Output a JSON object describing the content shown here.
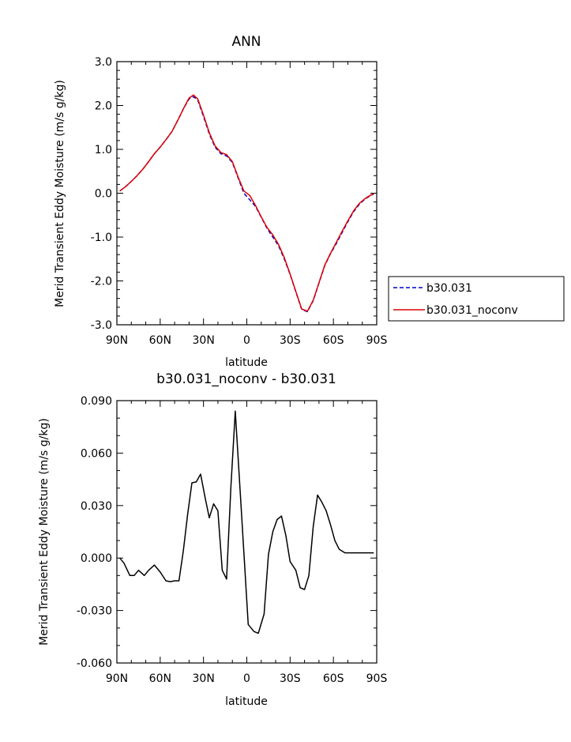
{
  "chart_data": [
    {
      "type": "line",
      "title": "ANN",
      "xlabel": "latitude",
      "ylabel": "Merid Transient Eddy Moisture (m/s g/kg)",
      "xlim": [
        -90,
        90
      ],
      "ylim": [
        -3.0,
        3.0
      ],
      "x_ticks": [
        -90,
        -60,
        -30,
        0,
        30,
        60,
        90
      ],
      "x_tick_labels": [
        "90N",
        "60N",
        "30N",
        "0",
        "30S",
        "60S",
        "90S"
      ],
      "y_ticks": [
        -3.0,
        -2.0,
        -1.0,
        0.0,
        1.0,
        2.0,
        3.0
      ],
      "y_tick_labels": [
        "-3.0",
        "-2.0",
        "-1.0",
        "0.0",
        "1.0",
        "2.0",
        "3.0"
      ],
      "grid": false,
      "legend_position": "outside-right",
      "series": [
        {
          "name": "b30.031",
          "color": "#0000cc",
          "dash": "dashed",
          "x": [
            -88,
            -84,
            -80,
            -76,
            -72,
            -68,
            -64,
            -60,
            -56,
            -52,
            -48,
            -44,
            -40,
            -37,
            -34,
            -30,
            -26,
            -22,
            -18,
            -14,
            -10,
            -6,
            -2,
            2,
            6,
            10,
            14,
            18,
            22,
            26,
            30,
            34,
            38,
            42,
            46,
            50,
            54,
            58,
            62,
            66,
            70,
            74,
            78,
            82,
            86,
            88
          ],
          "y": [
            0.05,
            0.15,
            0.27,
            0.4,
            0.55,
            0.72,
            0.9,
            1.05,
            1.22,
            1.4,
            1.65,
            1.92,
            2.15,
            2.2,
            2.12,
            1.75,
            1.35,
            1.05,
            0.9,
            0.85,
            0.7,
            0.35,
            0.0,
            -0.15,
            -0.3,
            -0.55,
            -0.8,
            -1.0,
            -1.2,
            -1.5,
            -1.85,
            -2.25,
            -2.65,
            -2.7,
            -2.45,
            -2.05,
            -1.65,
            -1.38,
            -1.15,
            -0.9,
            -0.65,
            -0.42,
            -0.25,
            -0.13,
            -0.05,
            -0.02
          ]
        },
        {
          "name": "b30.031_noconv",
          "color": "#dd0000",
          "dash": "solid",
          "x": [
            -88,
            -84,
            -80,
            -76,
            -72,
            -68,
            -64,
            -60,
            -56,
            -52,
            -48,
            -44,
            -40,
            -37,
            -34,
            -30,
            -26,
            -22,
            -18,
            -14,
            -10,
            -6,
            -2,
            2,
            6,
            10,
            14,
            18,
            22,
            26,
            30,
            34,
            38,
            42,
            46,
            50,
            54,
            58,
            62,
            66,
            70,
            74,
            78,
            82,
            86,
            88
          ],
          "y": [
            0.05,
            0.15,
            0.27,
            0.4,
            0.55,
            0.72,
            0.9,
            1.05,
            1.22,
            1.4,
            1.65,
            1.92,
            2.17,
            2.24,
            2.15,
            1.78,
            1.38,
            1.08,
            0.93,
            0.88,
            0.72,
            0.37,
            0.05,
            -0.05,
            -0.28,
            -0.54,
            -0.78,
            -0.95,
            -1.17,
            -1.47,
            -1.84,
            -2.24,
            -2.64,
            -2.69,
            -2.44,
            -2.04,
            -1.64,
            -1.37,
            -1.12,
            -0.87,
            -0.63,
            -0.4,
            -0.23,
            -0.12,
            -0.04,
            -0.01
          ]
        }
      ]
    },
    {
      "type": "line",
      "title": "b30.031_noconv - b30.031",
      "xlabel": "latitude",
      "ylabel": "Merid Transient Eddy Moisture (m/s g/kg)",
      "xlim": [
        -90,
        90
      ],
      "ylim": [
        -0.06,
        0.09
      ],
      "x_ticks": [
        -90,
        -60,
        -30,
        0,
        30,
        60,
        90
      ],
      "x_tick_labels": [
        "90N",
        "60N",
        "30N",
        "0",
        "30S",
        "60S",
        "90S"
      ],
      "y_ticks": [
        -0.06,
        -0.03,
        0.0,
        0.03,
        0.06,
        0.09
      ],
      "y_tick_labels": [
        "-0.060",
        "-0.030",
        "0.000",
        "0.030",
        "0.060",
        "0.090"
      ],
      "grid": false,
      "series": [
        {
          "color": "#000000",
          "dash": "solid",
          "x": [
            -88,
            -85,
            -81,
            -78,
            -75,
            -71,
            -68,
            -64,
            -60,
            -56,
            -53,
            -50,
            -47,
            -44,
            -41,
            -38,
            -35,
            -32,
            -29,
            -26,
            -23,
            -20,
            -17,
            -14,
            -11,
            -8,
            -4,
            1,
            5,
            8,
            12,
            15,
            18,
            21,
            24,
            27,
            30,
            34,
            37,
            40,
            43,
            46,
            49,
            52,
            55,
            58,
            61,
            64,
            68,
            71,
            75,
            78,
            81,
            84,
            88
          ],
          "y": [
            0.0,
            -0.003,
            -0.01,
            -0.01,
            -0.007,
            -0.01,
            -0.007,
            -0.004,
            -0.008,
            -0.013,
            -0.0135,
            -0.013,
            -0.013,
            0.004,
            0.025,
            0.043,
            0.0435,
            0.048,
            0.035,
            0.023,
            0.031,
            0.027,
            -0.007,
            -0.012,
            0.041,
            0.084,
            0.03,
            -0.038,
            -0.042,
            -0.043,
            -0.032,
            0.002,
            0.015,
            0.022,
            0.024,
            0.013,
            -0.002,
            -0.007,
            -0.017,
            -0.018,
            -0.01,
            0.018,
            0.036,
            0.032,
            0.027,
            0.019,
            0.01,
            0.005,
            0.003,
            0.003,
            0.003,
            0.003,
            0.003,
            0.003,
            0.003
          ]
        }
      ]
    }
  ]
}
